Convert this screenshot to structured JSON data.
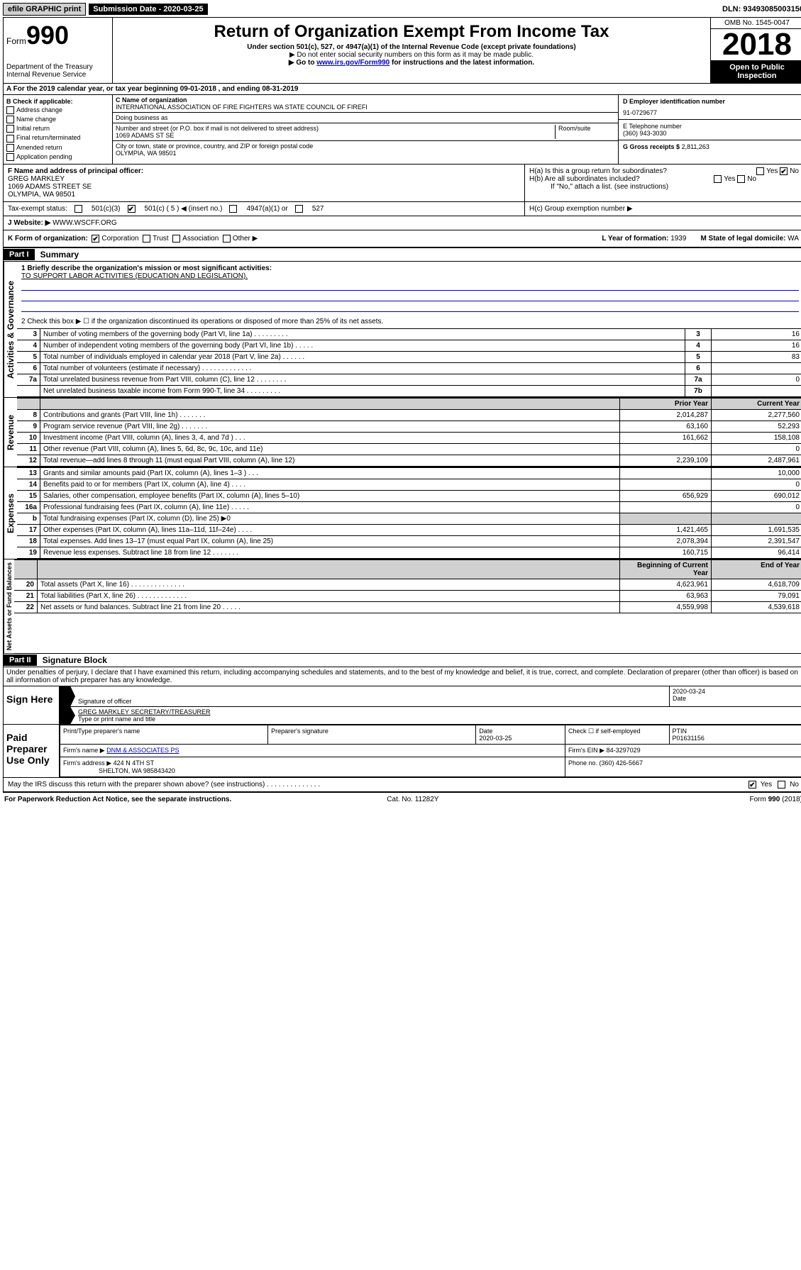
{
  "topbar": {
    "efile": "efile GRAPHIC print",
    "sub_label": "Submission Date - 2020-03-25",
    "dln": "DLN: 93493085003150"
  },
  "header": {
    "form_word": "Form",
    "form_num": "990",
    "dept": "Department of the Treasury",
    "irs": "Internal Revenue Service",
    "title": "Return of Organization Exempt From Income Tax",
    "sub1": "Under section 501(c), 527, or 4947(a)(1) of the Internal Revenue Code (except private foundations)",
    "sub2": "▶ Do not enter social security numbers on this form as it may be made public.",
    "sub3_pre": "▶ Go to ",
    "sub3_link": "www.irs.gov/Form990",
    "sub3_post": " for instructions and the latest information.",
    "omb": "OMB No. 1545-0047",
    "year": "2018",
    "open": "Open to Public Inspection"
  },
  "rowA": "A  For the 2019 calendar year, or tax year beginning 09-01-2018    , and ending 08-31-2019",
  "colB": {
    "head": "B Check if applicable:",
    "items": [
      "Address change",
      "Name change",
      "Initial return",
      "Final return/terminated",
      "Amended return",
      "Application pending"
    ]
  },
  "colC": {
    "name_label": "C Name of organization",
    "name": "INTERNATIONAL ASSOCIATION OF FIRE FIGHTERS WA STATE COUNCIL OF FIREFI",
    "dba_label": "Doing business as",
    "addr_label": "Number and street (or P.O. box if mail is not delivered to street address)",
    "room_label": "Room/suite",
    "addr": "1069 ADAMS ST SE",
    "city_label": "City or town, state or province, country, and ZIP or foreign postal code",
    "city": "OLYMPIA, WA  98501"
  },
  "colD": {
    "ein_label": "D Employer identification number",
    "ein": "91-0729677",
    "tel_label": "E Telephone number",
    "tel": "(360) 943-3030",
    "gross_label": "G Gross receipts $",
    "gross": "2,811,263"
  },
  "rowF": {
    "label": "F  Name and address of principal officer:",
    "name": "GREG MARKLEY",
    "addr1": "1069 ADAMS STREET SE",
    "addr2": "OLYMPIA, WA  98501"
  },
  "rowH": {
    "ha": "H(a)  Is this a group return for subordinates?",
    "hb": "H(b)  Are all subordinates included?",
    "hnote": "If \"No,\" attach a list. (see instructions)",
    "hc": "H(c)  Group exemption number ▶",
    "yes": "Yes",
    "no": "No"
  },
  "rowI": {
    "label": "Tax-exempt status:",
    "o1": "501(c)(3)",
    "o2_pre": "501(c) ( 5 ) ◀ (insert no.)",
    "o3": "4947(a)(1) or",
    "o4": "527"
  },
  "rowJ": {
    "label": "J   Website: ▶",
    "val": "WWW.WSCFF.ORG"
  },
  "rowK": {
    "label": "K Form of organization:",
    "opts": [
      "Corporation",
      "Trust",
      "Association",
      "Other ▶"
    ],
    "l_label": "L Year of formation:",
    "l_val": "1939",
    "m_label": "M State of legal domicile:",
    "m_val": "WA"
  },
  "part1": {
    "tag": "Part I",
    "title": "Summary",
    "q1": "1  Briefly describe the organization's mission or most significant activities:",
    "mission": "TO SUPPORT LABOR ACTIVITIES (EDUCATION AND LEGISLATION).",
    "q2": "2   Check this box ▶ ☐  if the organization discontinued its operations or disposed of more than 25% of its net assets.",
    "rows_gov": [
      {
        "n": "3",
        "t": "Number of voting members of the governing body (Part VI, line 1a)  .   .   .   .   .   .   .   .   .",
        "k": "3",
        "v": "16"
      },
      {
        "n": "4",
        "t": "Number of independent voting members of the governing body (Part VI, line 1b)  .   .   .   .   .",
        "k": "4",
        "v": "16"
      },
      {
        "n": "5",
        "t": "Total number of individuals employed in calendar year 2018 (Part V, line 2a)  .   .   .   .   .   .",
        "k": "5",
        "v": "83"
      },
      {
        "n": "6",
        "t": "Total number of volunteers (estimate if necessary)  .   .   .   .   .   .   .   .   .   .   .   .   .",
        "k": "6",
        "v": ""
      },
      {
        "n": "7a",
        "t": "Total unrelated business revenue from Part VIII, column (C), line 12  .   .   .   .   .   .   .   .",
        "k": "7a",
        "v": "0"
      },
      {
        "n": "",
        "t": "Net unrelated business taxable income from Form 990-T, line 34  .   .   .   .   .   .   .   .   .",
        "k": "7b",
        "v": ""
      }
    ],
    "col_prior": "Prior Year",
    "col_curr": "Current Year",
    "rows_rev": [
      {
        "n": "8",
        "t": "Contributions and grants (Part VIII, line 1h)  .   .   .   .   .   .   .",
        "p": "2,014,287",
        "c": "2,277,560"
      },
      {
        "n": "9",
        "t": "Program service revenue (Part VIII, line 2g)  .   .   .   .   .   .   .",
        "p": "63,160",
        "c": "52,293"
      },
      {
        "n": "10",
        "t": "Investment income (Part VIII, column (A), lines 3, 4, and 7d )  .   .   .",
        "p": "161,662",
        "c": "158,108"
      },
      {
        "n": "11",
        "t": "Other revenue (Part VIII, column (A), lines 5, 6d, 8c, 9c, 10c, and 11e)",
        "p": "",
        "c": "0"
      },
      {
        "n": "12",
        "t": "Total revenue—add lines 8 through 11 (must equal Part VIII, column (A), line 12)",
        "p": "2,239,109",
        "c": "2,487,961"
      }
    ],
    "rows_exp": [
      {
        "n": "13",
        "t": "Grants and similar amounts paid (Part IX, column (A), lines 1–3 )  .   .   .",
        "p": "",
        "c": "10,000"
      },
      {
        "n": "14",
        "t": "Benefits paid to or for members (Part IX, column (A), line 4)  .   .   .   .",
        "p": "",
        "c": "0"
      },
      {
        "n": "15",
        "t": "Salaries, other compensation, employee benefits (Part IX, column (A), lines 5–10)",
        "p": "656,929",
        "c": "690,012"
      },
      {
        "n": "16a",
        "t": "Professional fundraising fees (Part IX, column (A), line 11e)  .   .   .   .   .",
        "p": "",
        "c": "0"
      },
      {
        "n": "b",
        "t": "Total fundraising expenses (Part IX, column (D), line 25) ▶0",
        "p": "—shade—",
        "c": "—shade—"
      },
      {
        "n": "17",
        "t": "Other expenses (Part IX, column (A), lines 11a–11d, 11f–24e)  .   .   .   .",
        "p": "1,421,465",
        "c": "1,691,535"
      },
      {
        "n": "18",
        "t": "Total expenses. Add lines 13–17 (must equal Part IX, column (A), line 25)",
        "p": "2,078,394",
        "c": "2,391,547"
      },
      {
        "n": "19",
        "t": "Revenue less expenses. Subtract line 18 from line 12  .   .   .   .   .   .   .",
        "p": "160,715",
        "c": "96,414"
      }
    ],
    "col_beg": "Beginning of Current Year",
    "col_end": "End of Year",
    "rows_net": [
      {
        "n": "20",
        "t": "Total assets (Part X, line 16)  .   .   .   .   .   .   .   .   .   .   .   .   .   .",
        "p": "4,623,961",
        "c": "4,618,709"
      },
      {
        "n": "21",
        "t": "Total liabilities (Part X, line 26)  .   .   .   .   .   .   .   .   .   .   .   .   .",
        "p": "63,963",
        "c": "79,091"
      },
      {
        "n": "22",
        "t": "Net assets or fund balances. Subtract line 21 from line 20  .   .   .   .   .",
        "p": "4,559,998",
        "c": "4,539,618"
      }
    ]
  },
  "part2": {
    "tag": "Part II",
    "title": "Signature Block",
    "decl": "Under penalties of perjury, I declare that I have examined this return, including accompanying schedules and statements, and to the best of my knowledge and belief, it is true, correct, and complete. Declaration of preparer (other than officer) is based on all information of which preparer has any knowledge.",
    "sign_here": "Sign Here",
    "sig_officer": "Signature of officer",
    "sig_date": "2020-03-24",
    "date_label": "Date",
    "officer_name": "GREG MARKLEY  SECRETARY/TREASURER",
    "type_name": "Type or print name and title",
    "paid": "Paid Preparer Use Only",
    "prep_name_label": "Print/Type preparer's name",
    "prep_sig_label": "Preparer's signature",
    "prep_date_label": "Date",
    "prep_date": "2020-03-25",
    "check_label": "Check ☐ if self-employed",
    "ptin_label": "PTIN",
    "ptin": "P01631156",
    "firm_name_label": "Firm's name    ▶",
    "firm_name": "DNM & ASSOCIATES PS",
    "firm_ein_label": "Firm's EIN ▶",
    "firm_ein": "84-3297029",
    "firm_addr_label": "Firm's address ▶",
    "firm_addr1": "424 N 4TH ST",
    "firm_addr2": "SHELTON, WA  985843420",
    "phone_label": "Phone no.",
    "phone": "(360) 426-5667",
    "discuss": "May the IRS discuss this return with the preparer shown above? (see instructions)   .   .   .   .   .   .   .   .   .   .   .   .   .   .",
    "yes": "Yes",
    "no": "No"
  },
  "footer": {
    "pra": "For Paperwork Reduction Act Notice, see the separate instructions.",
    "cat": "Cat. No. 11282Y",
    "form": "Form 990 (2018)"
  },
  "labels": {
    "vert_gov": "Activities & Governance",
    "vert_rev": "Revenue",
    "vert_exp": "Expenses",
    "vert_net": "Net Assets or Fund Balances"
  }
}
